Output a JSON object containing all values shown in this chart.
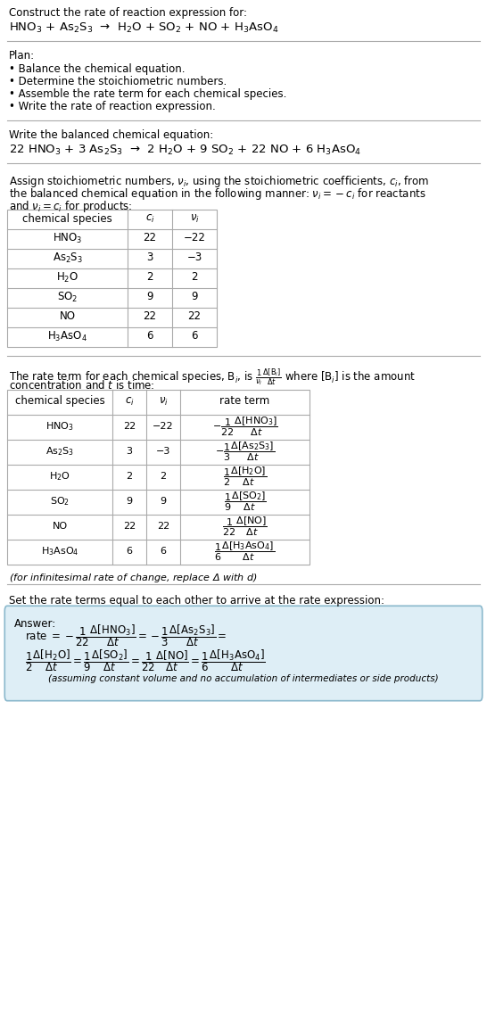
{
  "title_line1": "Construct the rate of reaction expression for:",
  "title_eq": "HNO$_3$ + As$_2$S$_3$  →  H$_2$O + SO$_2$ + NO + H$_3$AsO$_4$",
  "plan_header": "Plan:",
  "plan_items": [
    "• Balance the chemical equation.",
    "• Determine the stoichiometric numbers.",
    "• Assemble the rate term for each chemical species.",
    "• Write the rate of reaction expression."
  ],
  "balanced_header": "Write the balanced chemical equation:",
  "balanced_eq": "22 HNO$_3$ + 3 As$_2$S$_3$  →  2 H$_2$O + 9 SO$_2$ + 22 NO + 6 H$_3$AsO$_4$",
  "assign_text1": "Assign stoichiometric numbers, $\\nu_i$, using the stoichiometric coefficients, $c_i$, from",
  "assign_text2": "the balanced chemical equation in the following manner: $\\nu_i = -c_i$ for reactants",
  "assign_text3": "and $\\nu_i = c_i$ for products:",
  "table1_headers": [
    "chemical species",
    "$c_i$",
    "$\\nu_i$"
  ],
  "table1_rows": [
    [
      "HNO$_3$",
      "22",
      "−22"
    ],
    [
      "As$_2$S$_3$",
      "3",
      "−3"
    ],
    [
      "H$_2$O",
      "2",
      "2"
    ],
    [
      "SO$_2$",
      "9",
      "9"
    ],
    [
      "NO",
      "22",
      "22"
    ],
    [
      "H$_3$AsO$_4$",
      "6",
      "6"
    ]
  ],
  "table2_headers": [
    "chemical species",
    "$c_i$",
    "$\\nu_i$",
    "rate term"
  ],
  "table2_rows": [
    [
      "HNO$_3$",
      "22",
      "−22",
      "$-\\dfrac{1}{22}\\dfrac{\\Delta[\\mathrm{HNO_3}]}{\\Delta t}$"
    ],
    [
      "As$_2$S$_3$",
      "3",
      "−3",
      "$-\\dfrac{1}{3}\\dfrac{\\Delta[\\mathrm{As_2S_3}]}{\\Delta t}$"
    ],
    [
      "H$_2$O",
      "2",
      "2",
      "$\\dfrac{1}{2}\\dfrac{\\Delta[\\mathrm{H_2O}]}{\\Delta t}$"
    ],
    [
      "SO$_2$",
      "9",
      "9",
      "$\\dfrac{1}{9}\\dfrac{\\Delta[\\mathrm{SO_2}]}{\\Delta t}$"
    ],
    [
      "NO",
      "22",
      "22",
      "$\\dfrac{1}{22}\\dfrac{\\Delta[\\mathrm{NO}]}{\\Delta t}$"
    ],
    [
      "H$_3$AsO$_4$",
      "6",
      "6",
      "$\\dfrac{1}{6}\\dfrac{\\Delta[\\mathrm{H_3AsO_4}]}{\\Delta t}$"
    ]
  ],
  "infinitesimal_note": "(for infinitesimal rate of change, replace Δ with $d$)",
  "set_rate_text": "Set the rate terms equal to each other to arrive at the rate expression:",
  "answer_box_color": "#deeef6",
  "answer_box_border": "#8ab8cc",
  "answer_label": "Answer:",
  "answer_note": "(assuming constant volume and no accumulation of intermediates or side products)",
  "bg_color": "#ffffff",
  "text_color": "#000000",
  "line_color": "#aaaaaa",
  "fs": 8.5,
  "fs_eq": 9.5
}
